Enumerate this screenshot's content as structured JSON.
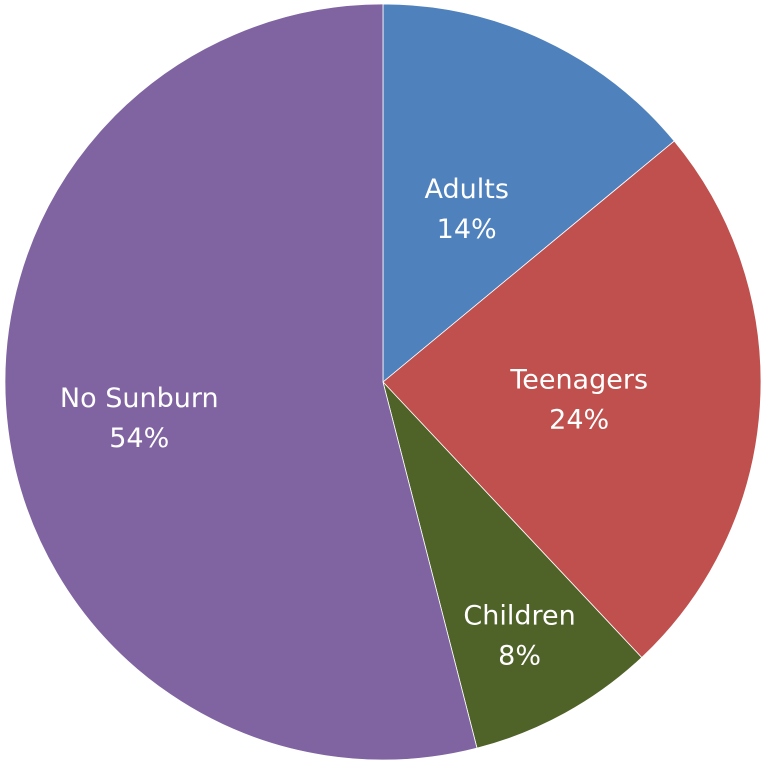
{
  "chart_data": {
    "type": "pie",
    "title": "",
    "slices": [
      {
        "label": "Adults",
        "value": 14,
        "value_label": "14%",
        "color": "#4f81bd"
      },
      {
        "label": "Teenagers",
        "value": 24,
        "value_label": "24%",
        "color": "#c0504d"
      },
      {
        "label": "Children",
        "value": 8,
        "value_label": "8%",
        "color": "#4f6228"
      },
      {
        "label": "No Sunburn",
        "value": 54,
        "value_label": "54%",
        "color": "#8064a2"
      }
    ],
    "start_angle": "12 o'clock",
    "direction": "clockwise",
    "legend": "none",
    "labels": "inside, category name and percentage"
  }
}
